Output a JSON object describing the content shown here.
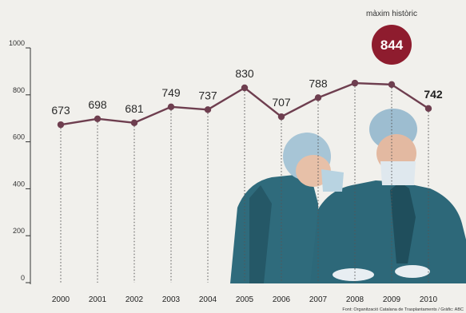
{
  "chart_data": {
    "type": "line",
    "x": [
      "2000",
      "2001",
      "2002",
      "2003",
      "2004",
      "2005",
      "2006",
      "2007",
      "2008",
      "2009",
      "2010"
    ],
    "values": [
      673,
      698,
      681,
      749,
      737,
      830,
      707,
      788,
      850,
      844,
      742
    ],
    "labels": [
      "673",
      "698",
      "681",
      "749",
      "737",
      "830",
      "707",
      "788",
      "",
      "844",
      "742"
    ],
    "yticks": [
      0,
      200,
      400,
      600,
      800,
      1000
    ],
    "ytick_labels": [
      "0",
      "200",
      "400",
      "600",
      "800",
      "1000"
    ],
    "ylim": [
      0,
      1000
    ],
    "peak_caption": "màxim històric",
    "source": "Font: Organització Catalana de Trasplantaments / Gràfic: ABC",
    "line_color": "#6e3e4f",
    "peak_color": "#8e1c2e",
    "grid": false
  },
  "photo": {
    "icon": "surgeons-photo",
    "scrub_color": "#2d6879",
    "cap_color": "#a7c5d6"
  }
}
